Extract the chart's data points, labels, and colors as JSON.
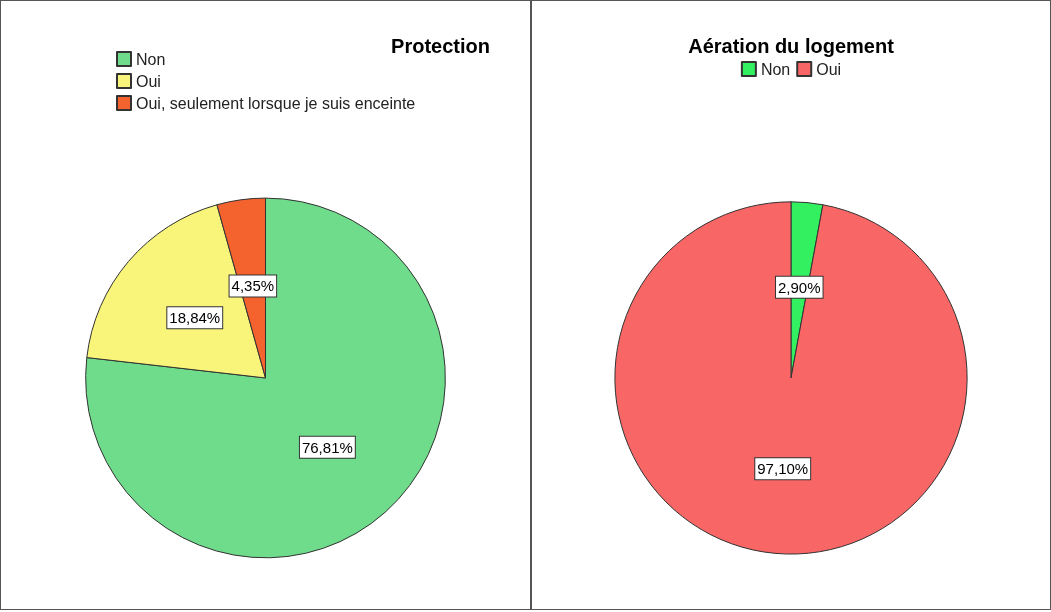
{
  "chart_data": [
    {
      "type": "pie",
      "title": "Protection",
      "categories": [
        "Non",
        "Oui",
        "Oui, seulement lorsque je suis enceinte"
      ],
      "values": [
        76.81,
        18.84,
        4.35
      ],
      "value_labels": [
        "76,81%",
        "18,84%",
        "4,35%"
      ],
      "colors": [
        "#6fdc8c",
        "#f8f57a",
        "#f4622d"
      ],
      "legend": "top left"
    },
    {
      "type": "pie",
      "title": "Aération du logement",
      "categories": [
        "Non",
        "Oui"
      ],
      "values": [
        2.9,
        97.1
      ],
      "value_labels": [
        "2,90%",
        "97,10%"
      ],
      "colors": [
        "#33f060",
        "#f96666"
      ],
      "legend": "top"
    }
  ]
}
